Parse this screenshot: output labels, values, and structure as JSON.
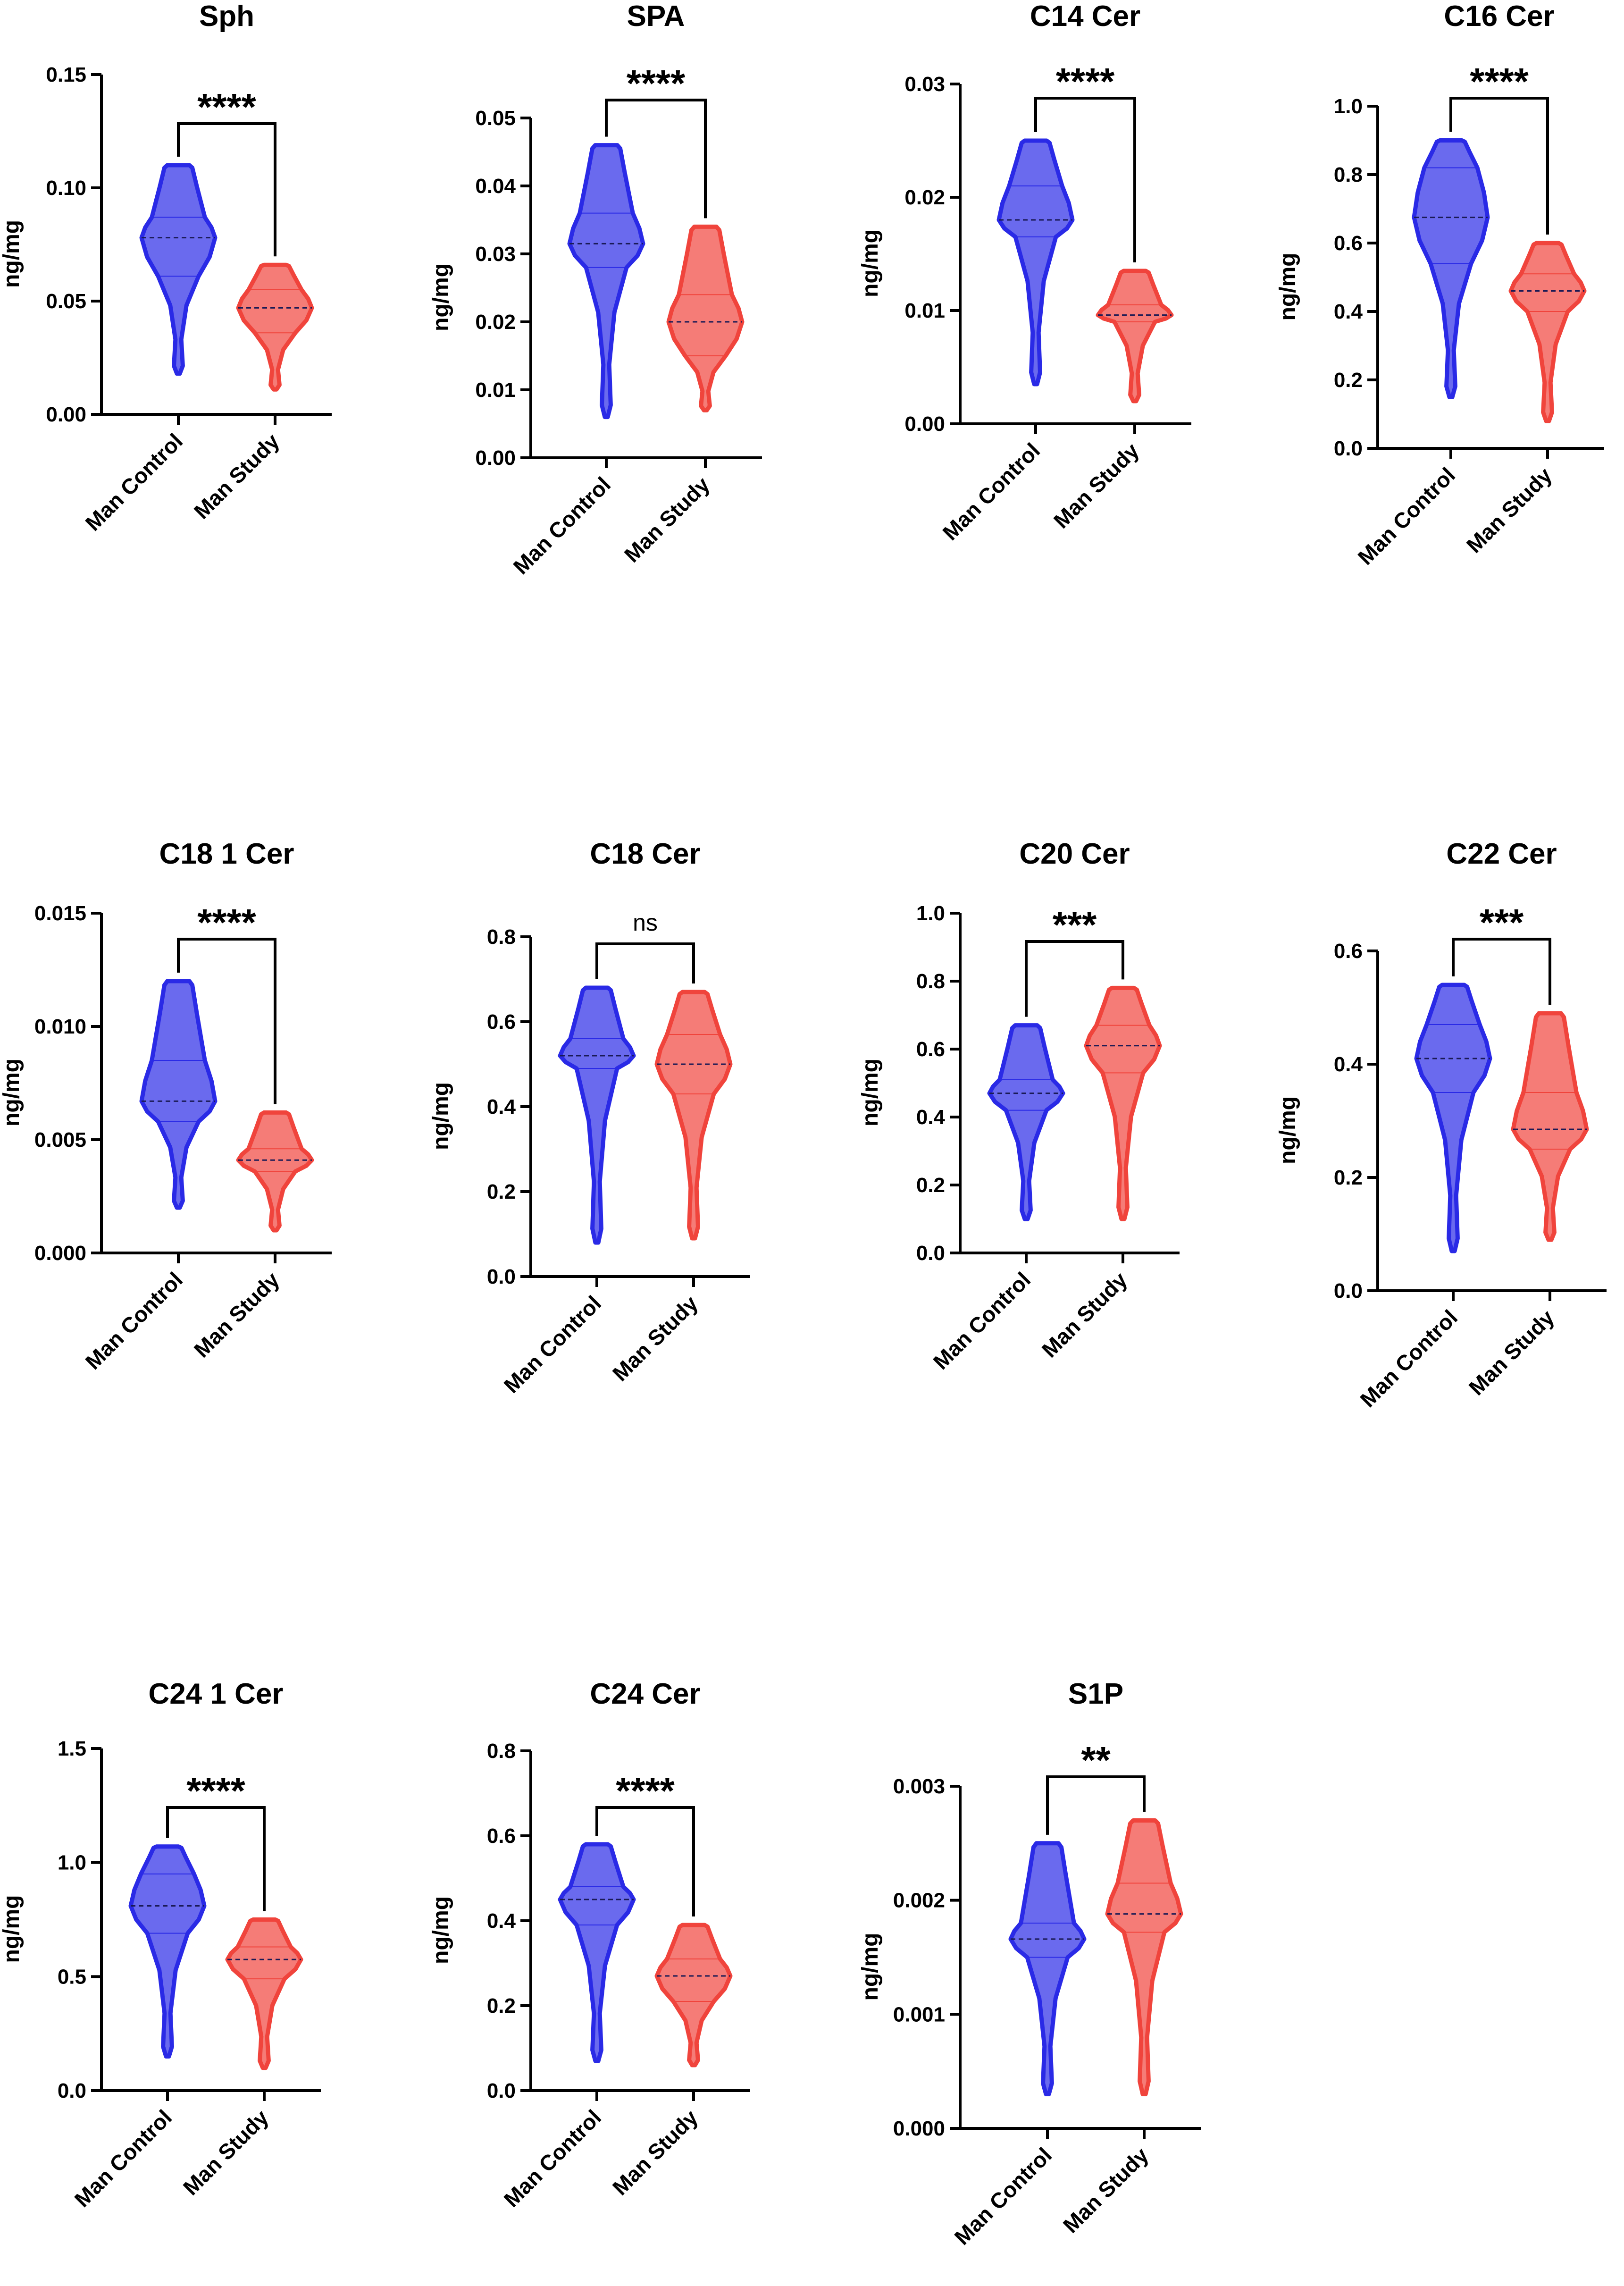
{
  "chart_data": [
    {
      "type": "violin",
      "title": "Sph",
      "ylabel": "ng/mg",
      "ylim": [
        0,
        0.15
      ],
      "yticks": [
        "0.00",
        "0.05",
        "0.10",
        "0.15"
      ],
      "significance": "****",
      "categories": [
        "Man Control",
        "Man Study"
      ],
      "series": [
        {
          "name": "Man Control",
          "color": "#2a2ae6",
          "min": 0.018,
          "max": 0.11,
          "q1": 0.061,
          "median": 0.078,
          "q3": 0.087
        },
        {
          "name": "Man Study",
          "color": "#f0443c",
          "min": 0.011,
          "max": 0.066,
          "q1": 0.036,
          "median": 0.047,
          "q3": 0.055
        }
      ]
    },
    {
      "type": "violin",
      "title": "SPA",
      "ylabel": "ng/mg",
      "ylim": [
        0,
        0.05
      ],
      "yticks": [
        "0.00",
        "0.01",
        "0.02",
        "0.03",
        "0.04",
        "0.05"
      ],
      "significance": "****",
      "categories": [
        "Man Control",
        "Man Study"
      ],
      "series": [
        {
          "name": "Man Control",
          "color": "#2a2ae6",
          "min": 0.006,
          "max": 0.046,
          "q1": 0.028,
          "median": 0.0315,
          "q3": 0.036
        },
        {
          "name": "Man Study",
          "color": "#f0443c",
          "min": 0.007,
          "max": 0.034,
          "q1": 0.015,
          "median": 0.02,
          "q3": 0.024
        }
      ]
    },
    {
      "type": "violin",
      "title": "C14 Cer",
      "ylabel": "ng/mg",
      "ylim": [
        0,
        0.03
      ],
      "yticks": [
        "0.00",
        "0.01",
        "0.02",
        "0.03"
      ],
      "significance": "****",
      "categories": [
        "Man Control",
        "Man Study"
      ],
      "series": [
        {
          "name": "Man Control",
          "color": "#2a2ae6",
          "min": 0.0035,
          "max": 0.025,
          "q1": 0.0165,
          "median": 0.018,
          "q3": 0.021
        },
        {
          "name": "Man Study",
          "color": "#f0443c",
          "min": 0.002,
          "max": 0.0135,
          "q1": 0.009,
          "median": 0.0096,
          "q3": 0.0105
        }
      ]
    },
    {
      "type": "violin",
      "title": "C16 Cer",
      "ylabel": "ng/mg",
      "ylim": [
        0,
        1.0
      ],
      "yticks": [
        "0.0",
        "0.2",
        "0.4",
        "0.6",
        "0.8",
        "1.0"
      ],
      "significance": "****",
      "categories": [
        "Man Control",
        "Man Study"
      ],
      "series": [
        {
          "name": "Man Control",
          "color": "#2a2ae6",
          "min": 0.15,
          "max": 0.9,
          "q1": 0.54,
          "median": 0.675,
          "q3": 0.82
        },
        {
          "name": "Man Study",
          "color": "#f0443c",
          "min": 0.08,
          "max": 0.6,
          "q1": 0.4,
          "median": 0.46,
          "q3": 0.51
        }
      ]
    },
    {
      "type": "violin",
      "title": "C18 1 Cer",
      "ylabel": "ng/mg",
      "ylim": [
        0,
        0.015
      ],
      "yticks": [
        "0.000",
        "0.005",
        "0.010",
        "0.015"
      ],
      "significance": "****",
      "categories": [
        "Man Control",
        "Man Study"
      ],
      "series": [
        {
          "name": "Man Control",
          "color": "#2a2ae6",
          "min": 0.002,
          "max": 0.012,
          "q1": 0.0058,
          "median": 0.0067,
          "q3": 0.0085
        },
        {
          "name": "Man Study",
          "color": "#f0443c",
          "min": 0.001,
          "max": 0.0062,
          "q1": 0.0036,
          "median": 0.0041,
          "q3": 0.0046
        }
      ]
    },
    {
      "type": "violin",
      "title": "C18 Cer",
      "ylabel": "ng/mg",
      "ylim": [
        0,
        0.8
      ],
      "yticks": [
        "0.0",
        "0.2",
        "0.4",
        "0.6",
        "0.8"
      ],
      "significance": "ns",
      "categories": [
        "Man Control",
        "Man Study"
      ],
      "series": [
        {
          "name": "Man Control",
          "color": "#2a2ae6",
          "min": 0.08,
          "max": 0.68,
          "q1": 0.49,
          "median": 0.52,
          "q3": 0.56
        },
        {
          "name": "Man Study",
          "color": "#f0443c",
          "min": 0.09,
          "max": 0.67,
          "q1": 0.43,
          "median": 0.5,
          "q3": 0.57
        }
      ]
    },
    {
      "type": "violin",
      "title": "C20 Cer",
      "ylabel": "ng/mg",
      "ylim": [
        0,
        1.0
      ],
      "yticks": [
        "0.0",
        "0.2",
        "0.4",
        "0.6",
        "0.8",
        "1.0"
      ],
      "significance": "***",
      "categories": [
        "Man Control",
        "Man Study"
      ],
      "series": [
        {
          "name": "Man Control",
          "color": "#2a2ae6",
          "min": 0.1,
          "max": 0.67,
          "q1": 0.42,
          "median": 0.47,
          "q3": 0.51
        },
        {
          "name": "Man Study",
          "color": "#f0443c",
          "min": 0.1,
          "max": 0.78,
          "q1": 0.53,
          "median": 0.61,
          "q3": 0.67
        }
      ]
    },
    {
      "type": "violin",
      "title": "C22 Cer",
      "ylabel": "ng/mg",
      "ylim": [
        0,
        0.6
      ],
      "yticks": [
        "0.0",
        "0.2",
        "0.4",
        "0.6"
      ],
      "significance": "***",
      "categories": [
        "Man Control",
        "Man Study"
      ],
      "series": [
        {
          "name": "Man Control",
          "color": "#2a2ae6",
          "min": 0.07,
          "max": 0.54,
          "q1": 0.35,
          "median": 0.41,
          "q3": 0.47
        },
        {
          "name": "Man Study",
          "color": "#f0443c",
          "min": 0.09,
          "max": 0.49,
          "q1": 0.25,
          "median": 0.285,
          "q3": 0.35
        }
      ]
    },
    {
      "type": "violin",
      "title": "C24 1 Cer",
      "ylabel": "ng/mg",
      "ylim": [
        0,
        1.5
      ],
      "yticks": [
        "0.0",
        "0.5",
        "1.0",
        "1.5"
      ],
      "significance": "****",
      "categories": [
        "Man Control",
        "Man Study"
      ],
      "series": [
        {
          "name": "Man Control",
          "color": "#2a2ae6",
          "min": 0.15,
          "max": 1.07,
          "q1": 0.69,
          "median": 0.81,
          "q3": 0.95
        },
        {
          "name": "Man Study",
          "color": "#f0443c",
          "min": 0.1,
          "max": 0.75,
          "q1": 0.49,
          "median": 0.575,
          "q3": 0.63
        }
      ]
    },
    {
      "type": "violin",
      "title": "C24 Cer",
      "ylabel": "ng/mg",
      "ylim": [
        0,
        0.8
      ],
      "yticks": [
        "0.0",
        "0.2",
        "0.4",
        "0.6",
        "0.8"
      ],
      "significance": "****",
      "categories": [
        "Man Control",
        "Man Study"
      ],
      "series": [
        {
          "name": "Man Control",
          "color": "#2a2ae6",
          "min": 0.07,
          "max": 0.58,
          "q1": 0.39,
          "median": 0.45,
          "q3": 0.48
        },
        {
          "name": "Man Study",
          "color": "#f0443c",
          "min": 0.06,
          "max": 0.39,
          "q1": 0.21,
          "median": 0.27,
          "q3": 0.31
        }
      ]
    },
    {
      "type": "violin",
      "title": "S1P",
      "ylabel": "ng/mg",
      "ylim": [
        0,
        0.003
      ],
      "yticks": [
        "0.000",
        "0.001",
        "0.002",
        "0.003"
      ],
      "significance": "**",
      "categories": [
        "Man Control",
        "Man Study"
      ],
      "series": [
        {
          "name": "Man Control",
          "color": "#2a2ae6",
          "min": 0.0003,
          "max": 0.0025,
          "q1": 0.0015,
          "median": 0.00166,
          "q3": 0.0018
        },
        {
          "name": "Man Study",
          "color": "#f0443c",
          "min": 0.0003,
          "max": 0.0027,
          "q1": 0.00172,
          "median": 0.00188,
          "q3": 0.00215
        }
      ]
    }
  ]
}
